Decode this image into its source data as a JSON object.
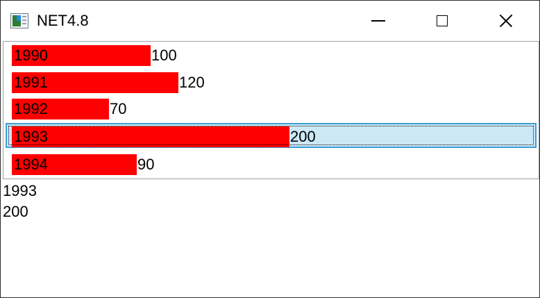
{
  "window": {
    "title": "NET4.8",
    "icon": "app-window-icon"
  },
  "titlebar_buttons": [
    "minimize-icon",
    "maximize-icon",
    "close-icon"
  ],
  "chart_data": {
    "type": "bar",
    "categories": [
      "1990",
      "1991",
      "1992",
      "1993",
      "1994"
    ],
    "values": [
      100,
      120,
      70,
      200,
      90
    ],
    "title": "",
    "xlabel": "",
    "ylabel": "",
    "orientation": "horizontal",
    "bar_color": "#ff0000",
    "selected_index": 3,
    "selected_color": "#cce8f7"
  },
  "list": {
    "items": [
      {
        "year": "1990",
        "value": "100"
      },
      {
        "year": "1991",
        "value": "120"
      },
      {
        "year": "1992",
        "value": "70"
      },
      {
        "year": "1993",
        "value": "200"
      },
      {
        "year": "1994",
        "value": "90"
      }
    ]
  },
  "selection": {
    "year": "1993",
    "value": "200"
  }
}
